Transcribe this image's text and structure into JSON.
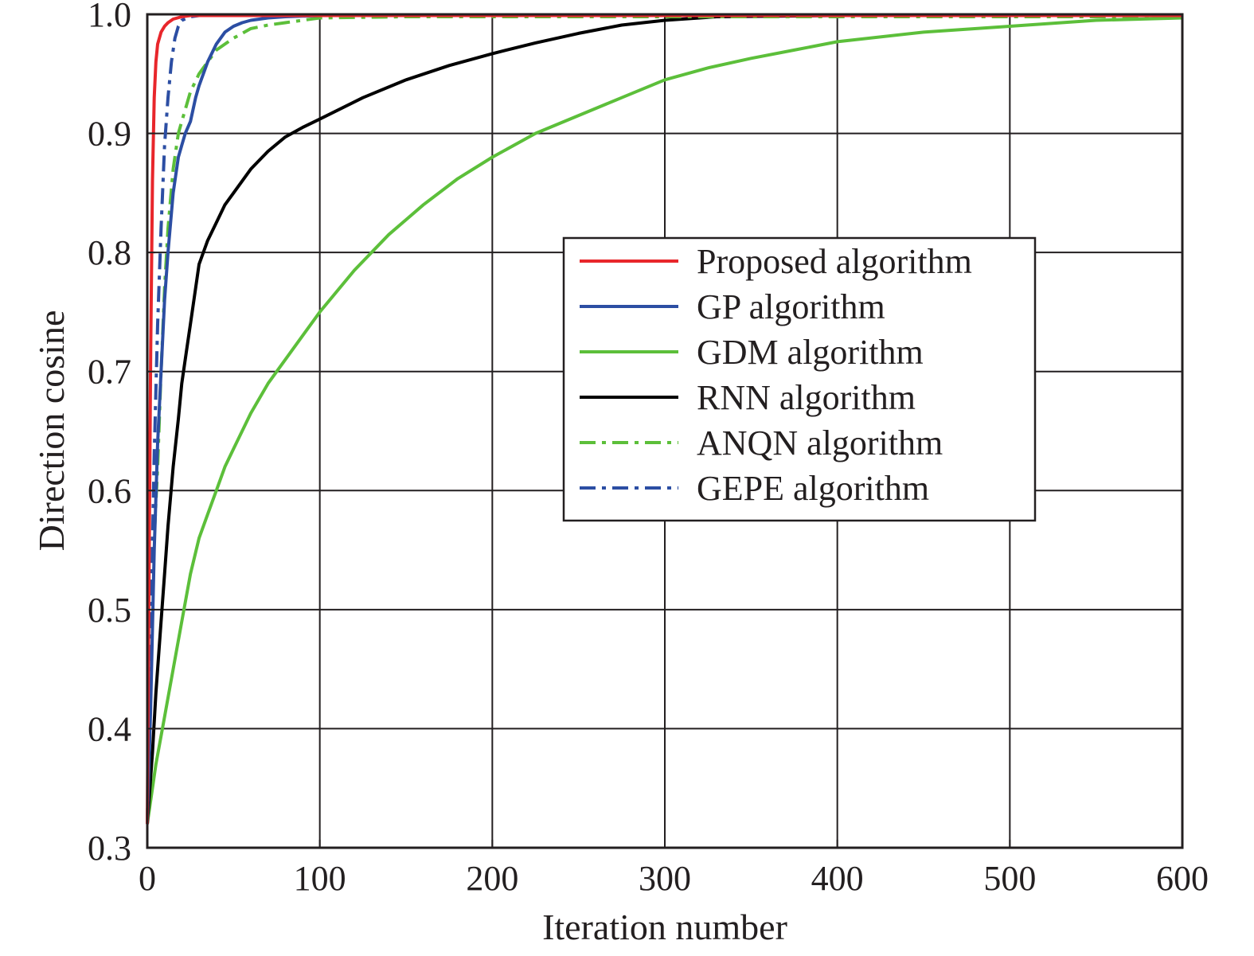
{
  "chart_data": {
    "type": "line",
    "title": "",
    "xlabel": "Iteration number",
    "ylabel": "Direction cosine",
    "xlim": [
      0,
      600
    ],
    "ylim": [
      0.3,
      1.0
    ],
    "xticks": [
      0,
      100,
      200,
      300,
      400,
      500,
      600
    ],
    "yticks": [
      0.3,
      0.4,
      0.5,
      0.6,
      0.7,
      0.8,
      0.9,
      1.0
    ],
    "xtick_labels": [
      "0",
      "100",
      "200",
      "300",
      "400",
      "500",
      "600"
    ],
    "ytick_labels": [
      "0.3",
      "0.4",
      "0.5",
      "0.6",
      "0.7",
      "0.8",
      "0.9",
      "1.0"
    ],
    "grid": true,
    "legend_position": "center-right",
    "series": [
      {
        "name": "Proposed algorithm",
        "color": "#e8262b",
        "dash": "solid",
        "x": [
          0,
          1,
          2,
          3,
          4,
          5,
          6,
          8,
          10,
          12,
          15,
          20,
          25,
          30,
          40,
          60,
          100,
          200,
          300,
          400,
          500,
          600
        ],
        "y": [
          0.32,
          0.53,
          0.72,
          0.86,
          0.93,
          0.96,
          0.975,
          0.985,
          0.99,
          0.993,
          0.996,
          0.998,
          0.999,
          0.999,
          0.999,
          0.999,
          0.999,
          0.999,
          0.999,
          0.999,
          0.999,
          0.999
        ]
      },
      {
        "name": "GP algorithm",
        "color": "#2c4ea3",
        "dash": "solid",
        "x": [
          0,
          2,
          4,
          6,
          8,
          10,
          12,
          15,
          18,
          20,
          22,
          25,
          28,
          30,
          35,
          40,
          45,
          50,
          55,
          60,
          70,
          80,
          100,
          150,
          200,
          300,
          400,
          500,
          600
        ],
        "y": [
          0.32,
          0.42,
          0.55,
          0.64,
          0.7,
          0.76,
          0.8,
          0.85,
          0.88,
          0.89,
          0.9,
          0.91,
          0.93,
          0.94,
          0.96,
          0.975,
          0.985,
          0.99,
          0.993,
          0.995,
          0.997,
          0.998,
          0.999,
          0.999,
          0.999,
          0.999,
          0.999,
          0.999,
          0.999
        ]
      },
      {
        "name": "GDM algorithm",
        "color": "#5cbf3a",
        "dash": "solid",
        "x": [
          0,
          5,
          10,
          15,
          20,
          25,
          30,
          35,
          40,
          45,
          50,
          60,
          70,
          80,
          90,
          100,
          120,
          140,
          160,
          180,
          200,
          225,
          250,
          275,
          300,
          325,
          350,
          375,
          400,
          450,
          500,
          550,
          600
        ],
        "y": [
          0.32,
          0.37,
          0.41,
          0.45,
          0.49,
          0.53,
          0.56,
          0.58,
          0.6,
          0.62,
          0.635,
          0.665,
          0.69,
          0.71,
          0.73,
          0.75,
          0.785,
          0.815,
          0.84,
          0.862,
          0.88,
          0.9,
          0.915,
          0.93,
          0.945,
          0.955,
          0.963,
          0.97,
          0.977,
          0.985,
          0.99,
          0.995,
          0.997
        ]
      },
      {
        "name": "RNN algorithm",
        "color": "#000000",
        "dash": "solid",
        "x": [
          0,
          3,
          5,
          8,
          10,
          12,
          15,
          18,
          20,
          23,
          25,
          28,
          30,
          35,
          40,
          45,
          50,
          60,
          70,
          80,
          90,
          100,
          125,
          150,
          175,
          200,
          225,
          250,
          275,
          300,
          330,
          400,
          500,
          600
        ],
        "y": [
          0.32,
          0.38,
          0.43,
          0.49,
          0.53,
          0.57,
          0.62,
          0.66,
          0.69,
          0.72,
          0.74,
          0.77,
          0.79,
          0.81,
          0.825,
          0.84,
          0.85,
          0.87,
          0.885,
          0.897,
          0.905,
          0.912,
          0.93,
          0.945,
          0.957,
          0.967,
          0.976,
          0.984,
          0.991,
          0.995,
          0.998,
          0.999,
          0.999,
          0.999
        ]
      },
      {
        "name": "ANQN algorithm",
        "color": "#5cbf3a",
        "dash": "dashdot",
        "x": [
          0,
          2,
          4,
          6,
          8,
          10,
          12,
          15,
          18,
          20,
          25,
          30,
          35,
          40,
          50,
          60,
          70,
          80,
          90,
          100,
          150,
          200,
          300,
          400,
          500,
          600
        ],
        "y": [
          0.32,
          0.44,
          0.56,
          0.62,
          0.7,
          0.77,
          0.82,
          0.87,
          0.9,
          0.91,
          0.935,
          0.95,
          0.96,
          0.97,
          0.98,
          0.988,
          0.991,
          0.993,
          0.995,
          0.997,
          0.998,
          0.998,
          0.998,
          0.998,
          0.998,
          0.998
        ]
      },
      {
        "name": "GEPE algorithm",
        "color": "#2c4ea3",
        "dash": "dashdot",
        "x": [
          0,
          2,
          4,
          6,
          8,
          10,
          12,
          14,
          16,
          18,
          20,
          25,
          30,
          40,
          60,
          100,
          200,
          300,
          400,
          500,
          600
        ],
        "y": [
          0.32,
          0.48,
          0.63,
          0.74,
          0.82,
          0.89,
          0.93,
          0.96,
          0.98,
          0.99,
          0.995,
          0.998,
          0.999,
          0.999,
          0.999,
          0.999,
          0.999,
          0.999,
          0.999,
          0.999,
          0.999
        ]
      }
    ]
  }
}
